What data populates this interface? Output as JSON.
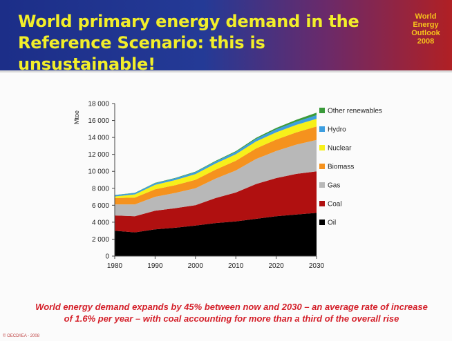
{
  "slide": {
    "title_line1": "World primary energy demand in the",
    "title_line2": "Reference Scenario: this is unsustainable!",
    "badge": [
      "World",
      "Energy",
      "Outlook",
      "2008"
    ],
    "caption_line1": "World energy demand expands by 45% between now and 2030 – an average rate of increase",
    "caption_line2": "of 1.6% per year – with coal accounting for more than a third of the overall rise",
    "copyright": "© OECD/IEA - 2008"
  },
  "colors": {
    "header_blue": "#1c2e88",
    "header_red": "#b02024",
    "title_yellow": "#f2ee2a",
    "caption_red": "#d4202a"
  },
  "chart_data": {
    "type": "area",
    "stacked": true,
    "title": "",
    "xlabel": "",
    "ylabel": "Mtoe",
    "xlim": [
      1980,
      2030
    ],
    "ylim": [
      0,
      18000
    ],
    "xticks": [
      1980,
      1990,
      2000,
      2010,
      2020,
      2030
    ],
    "yticks": [
      0,
      2000,
      4000,
      6000,
      8000,
      10000,
      12000,
      14000,
      16000,
      18000
    ],
    "ytick_labels": [
      "0",
      "2 000",
      "4 000",
      "6 000",
      "8 000",
      "10 000",
      "12 000",
      "14 000",
      "16 000",
      "18 000"
    ],
    "grid": false,
    "legend_position": "right",
    "x": [
      1980,
      1985,
      1990,
      1995,
      2000,
      2005,
      2010,
      2015,
      2020,
      2025,
      2030
    ],
    "series": [
      {
        "name": "Oil",
        "color": "#000000",
        "values": [
          3000,
          2800,
          3150,
          3350,
          3600,
          3900,
          4100,
          4400,
          4700,
          4900,
          5100
        ]
      },
      {
        "name": "Coal",
        "color": "#b01010",
        "values": [
          1800,
          1900,
          2200,
          2300,
          2400,
          2950,
          3400,
          4100,
          4500,
          4800,
          4900
        ]
      },
      {
        "name": "Gas",
        "color": "#b8b8b8",
        "values": [
          1300,
          1400,
          1650,
          1800,
          2000,
          2300,
          2600,
          2950,
          3200,
          3450,
          3700
        ]
      },
      {
        "name": "Biomass",
        "color": "#f5921e",
        "values": [
          750,
          800,
          880,
          920,
          1000,
          1050,
          1150,
          1250,
          1350,
          1450,
          1600
        ]
      },
      {
        "name": "Nuclear",
        "color": "#f7f01a",
        "values": [
          190,
          380,
          530,
          600,
          680,
          720,
          760,
          820,
          850,
          880,
          900
        ]
      },
      {
        "name": "Hydro",
        "color": "#3d9ee0",
        "values": [
          150,
          170,
          190,
          210,
          230,
          250,
          280,
          310,
          350,
          380,
          420
        ]
      },
      {
        "name": "Other renewables",
        "color": "#3a9a3a",
        "values": [
          20,
          30,
          40,
          50,
          60,
          70,
          90,
          120,
          170,
          230,
          300
        ]
      }
    ]
  }
}
